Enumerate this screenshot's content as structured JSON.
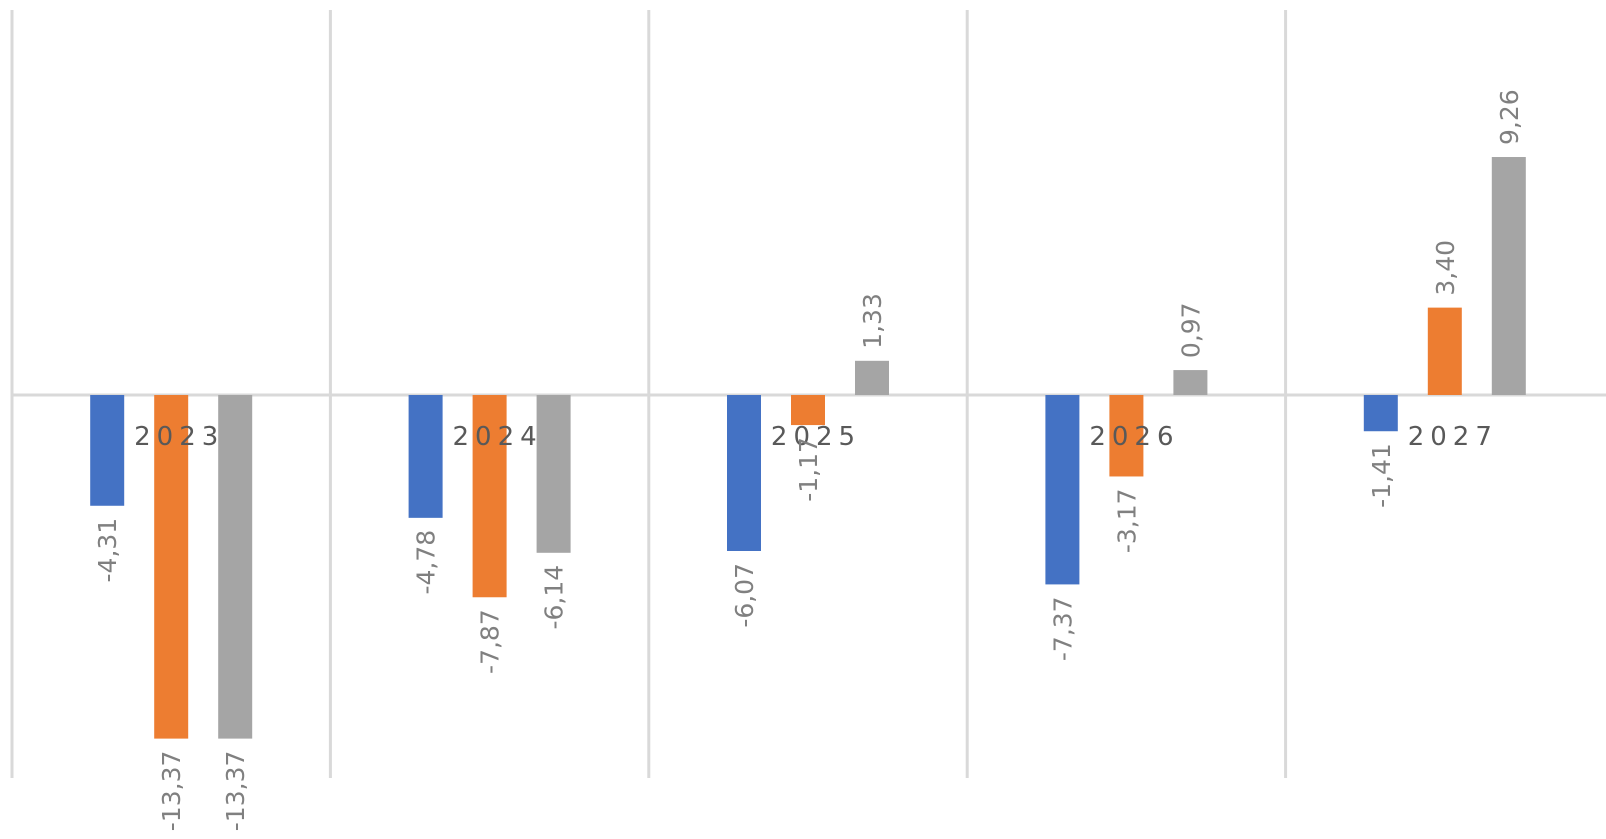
{
  "chart_data": {
    "type": "bar",
    "categories": [
      "2023",
      "2024",
      "2025",
      "2026",
      "2027"
    ],
    "series": [
      {
        "values": [
          -4.31,
          -4.78,
          -6.07,
          -7.37,
          -1.41
        ],
        "color": "#4472c4"
      },
      {
        "values": [
          -13.37,
          -7.87,
          -1.17,
          -3.17,
          3.4
        ],
        "color": "#ed7d31"
      },
      {
        "values": [
          -13.37,
          -6.14,
          1.33,
          0.97,
          9.26
        ],
        "color": "#a5a5a5"
      }
    ],
    "data_labels": [
      [
        "-4,31",
        "-4,78",
        "-6,07",
        "-7,37",
        "-1,41"
      ],
      [
        "-13,37",
        "-7,87",
        "-1,17",
        "-3,17",
        "3,40"
      ],
      [
        "-13,37",
        "-6,14",
        "1,33",
        "0,97",
        "9,26"
      ]
    ],
    "ylim": [
      -15,
      15
    ],
    "grid": "vertical",
    "legend": "none",
    "title": "",
    "xlabel": "",
    "ylabel": ""
  }
}
